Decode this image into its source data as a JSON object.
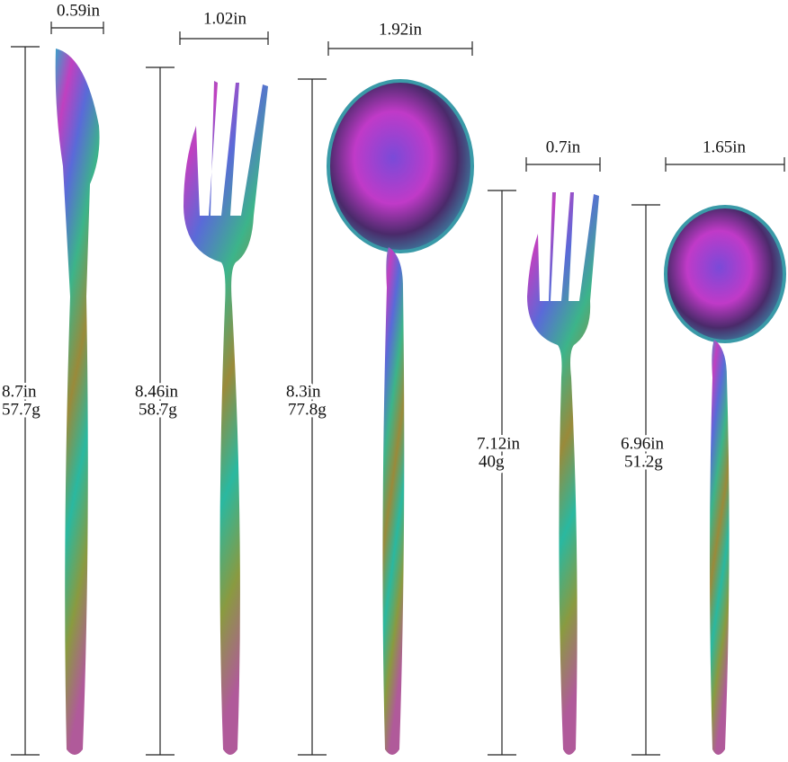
{
  "items": [
    {
      "width": "0.59in",
      "length": "8.7in",
      "weight": "57.7g"
    },
    {
      "width": "1.02in",
      "length": "8.46in",
      "weight": "58.7g"
    },
    {
      "width": "1.92in",
      "length": "8.3in",
      "weight": "77.8g"
    },
    {
      "width": "0.7in",
      "length": "7.12in",
      "weight": "40g"
    },
    {
      "width": "1.65in",
      "length": "6.96in",
      "weight": "51.2g"
    }
  ]
}
